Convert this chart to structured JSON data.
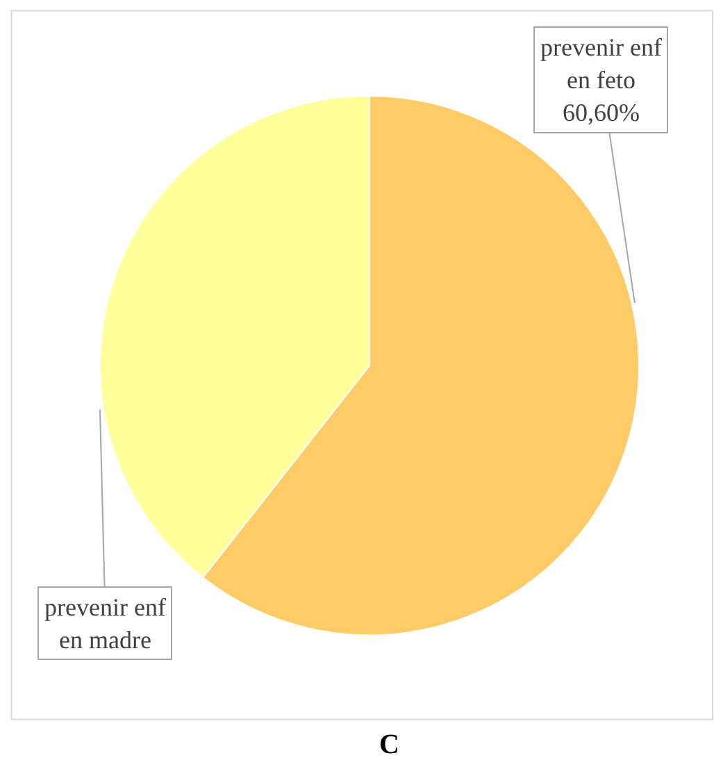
{
  "chart_data": {
    "type": "pie",
    "categories": [
      "prevenir enf en feto",
      "prevenir enf en madre"
    ],
    "values": [
      60.6,
      39.4
    ],
    "colors": [
      "#fecb67",
      "#ffff9b"
    ],
    "value_labels": [
      "60,60%",
      null
    ],
    "legend": false,
    "annotations": [
      "C"
    ]
  }
}
